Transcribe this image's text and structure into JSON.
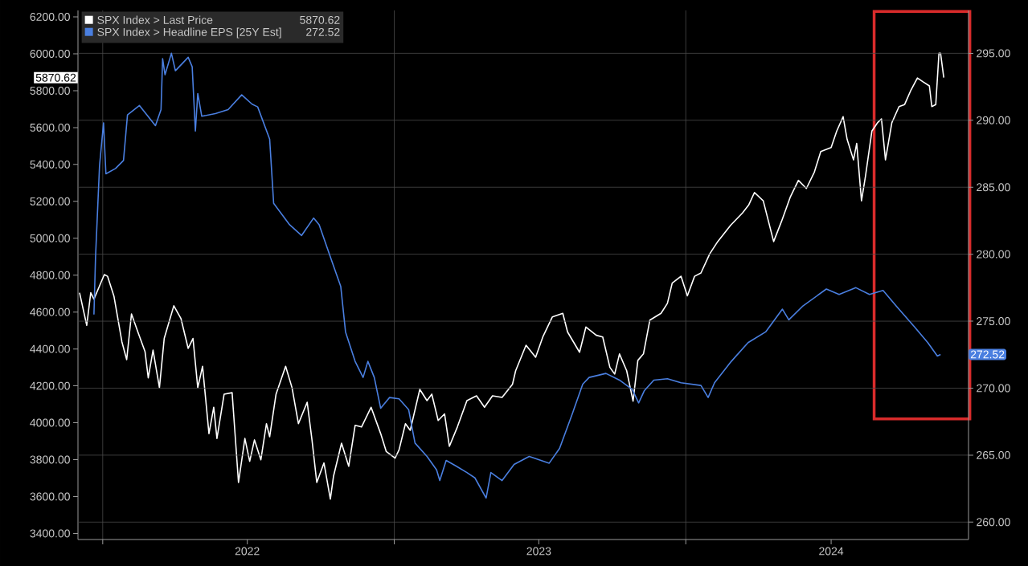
{
  "chart_data": {
    "type": "line",
    "legend": "top left",
    "grid": true,
    "marker": "none",
    "line_style": "solid",
    "xlim": [
      "2021-12-01",
      "2024-12-20"
    ],
    "xticks": [
      {
        "value": "2022-01-01",
        "label": null
      },
      {
        "value": "2022-07-01",
        "label": "2022"
      },
      {
        "value": "2023-01-01",
        "label": null
      },
      {
        "value": "2023-07-01",
        "label": "2023"
      },
      {
        "value": "2024-01-01",
        "label": null
      },
      {
        "value": "2024-07-01",
        "label": "2024"
      }
    ],
    "ylim": [
      3367,
      6235
    ],
    "yticks": [
      {
        "value": 3400,
        "label": "3400.00"
      },
      {
        "value": 3600,
        "label": "3600.00"
      },
      {
        "value": 3800,
        "label": "3800.00"
      },
      {
        "value": 4000,
        "label": "4000.00"
      },
      {
        "value": 4200,
        "label": "4200.00"
      },
      {
        "value": 4400,
        "label": "4400.00"
      },
      {
        "value": 4600,
        "label": "4600.00"
      },
      {
        "value": 4800,
        "label": "4800.00"
      },
      {
        "value": 5000,
        "label": "5000.00"
      },
      {
        "value": 5200,
        "label": "5200.00"
      },
      {
        "value": 5400,
        "label": "5400.00"
      },
      {
        "value": 5600,
        "label": "5600.00"
      },
      {
        "value": 5800,
        "label": "5800.00"
      },
      {
        "value": 6000,
        "label": "6000.00"
      },
      {
        "value": 6200,
        "label": "6200.00"
      }
    ],
    "y2lim": [
      258.7,
      298.2
    ],
    "y2ticks": [
      {
        "value": 260,
        "label": "260.00"
      },
      {
        "value": 265,
        "label": "265.00"
      },
      {
        "value": 270,
        "label": "270.00"
      },
      {
        "value": 275,
        "label": "275.00"
      },
      {
        "value": 280,
        "label": "280.00"
      },
      {
        "value": 285,
        "label": "285.00"
      },
      {
        "value": 290,
        "label": "290.00"
      },
      {
        "value": 295,
        "label": "295.00"
      }
    ],
    "annotations": [
      "5870.62",
      "272.52"
    ],
    "series": [
      {
        "name": "SPX Index > Last Price",
        "color": "#ffffff",
        "x": [
          "2021-12-03",
          "2021-12-12",
          "2021-12-17",
          "2021-12-21",
          "2022-01-03",
          "2022-01-07",
          "2022-01-15",
          "2022-01-25",
          "2022-01-31",
          "2022-02-06",
          "2022-02-14",
          "2022-02-23",
          "2022-02-27",
          "2022-03-05",
          "2022-03-13",
          "2022-03-19",
          "2022-03-31",
          "2022-04-09",
          "2022-04-18",
          "2022-04-24",
          "2022-04-30",
          "2022-05-06",
          "2022-05-14",
          "2022-05-20",
          "2022-05-24",
          "2022-06-02",
          "2022-06-12",
          "2022-06-20",
          "2022-06-28",
          "2022-07-04",
          "2022-07-10",
          "2022-07-18",
          "2022-07-25",
          "2022-07-29",
          "2022-08-06",
          "2022-08-18",
          "2022-08-26",
          "2022-09-03",
          "2022-09-14",
          "2022-09-20",
          "2022-09-26",
          "2022-10-05",
          "2022-10-13",
          "2022-10-17",
          "2022-10-27",
          "2022-11-05",
          "2022-11-13",
          "2022-11-21",
          "2022-12-03",
          "2022-12-15",
          "2022-12-22",
          "2023-01-02",
          "2023-01-07",
          "2023-01-15",
          "2023-01-21",
          "2023-02-02",
          "2023-02-11",
          "2023-02-17",
          "2023-02-25",
          "2023-03-05",
          "2023-03-11",
          "2023-03-21",
          "2023-04-02",
          "2023-04-14",
          "2023-04-24",
          "2023-05-04",
          "2023-05-16",
          "2023-05-29",
          "2023-06-02",
          "2023-06-15",
          "2023-06-27",
          "2023-07-06",
          "2023-07-18",
          "2023-07-31",
          "2023-08-06",
          "2023-08-21",
          "2023-08-29",
          "2023-09-11",
          "2023-09-19",
          "2023-09-28",
          "2023-10-04",
          "2023-10-10",
          "2023-10-19",
          "2023-10-27",
          "2023-11-02",
          "2023-11-09",
          "2023-11-17",
          "2023-12-01",
          "2023-12-09",
          "2023-12-15",
          "2023-12-26",
          "2024-01-03",
          "2024-01-12",
          "2024-01-20",
          "2024-01-31",
          "2024-02-10",
          "2024-02-26",
          "2024-03-12",
          "2024-03-20",
          "2024-03-27",
          "2024-04-07",
          "2024-04-20",
          "2024-04-30",
          "2024-05-11",
          "2024-05-21",
          "2024-05-31",
          "2024-06-10",
          "2024-06-18",
          "2024-07-01",
          "2024-07-08",
          "2024-07-16",
          "2024-07-21",
          "2024-07-29",
          "2024-08-02",
          "2024-08-08",
          "2024-08-13",
          "2024-08-21",
          "2024-08-28",
          "2024-09-02",
          "2024-09-07",
          "2024-09-15",
          "2024-09-24",
          "2024-10-01",
          "2024-10-09",
          "2024-10-17",
          "2024-10-24",
          "2024-11-01",
          "2024-11-04",
          "2024-11-09",
          "2024-11-13",
          "2024-11-15",
          "2024-11-19"
        ],
        "values": [
          4705,
          4528,
          4705,
          4670,
          4803,
          4794,
          4687,
          4439,
          4342,
          4590,
          4492,
          4385,
          4243,
          4394,
          4190,
          4457,
          4634,
          4564,
          4403,
          4457,
          4190,
          4306,
          3941,
          4084,
          3915,
          4155,
          4163,
          3676,
          3915,
          3791,
          3907,
          3799,
          3995,
          3924,
          4155,
          4306,
          4190,
          3995,
          4111,
          3907,
          3676,
          3782,
          3586,
          3711,
          3889,
          3764,
          3986,
          3977,
          4084,
          3941,
          3844,
          3808,
          3853,
          3995,
          3959,
          4181,
          4120,
          4155,
          4012,
          4048,
          3872,
          3977,
          4120,
          4146,
          4084,
          4146,
          4137,
          4208,
          4282,
          4420,
          4355,
          4465,
          4574,
          4593,
          4492,
          4382,
          4519,
          4474,
          4465,
          4300,
          4264,
          4373,
          4282,
          4117,
          4338,
          4373,
          4556,
          4593,
          4647,
          4757,
          4794,
          4688,
          4794,
          4812,
          4916,
          4982,
          5070,
          5137,
          5182,
          5248,
          5203,
          4982,
          5093,
          5225,
          5314,
          5270,
          5359,
          5470,
          5492,
          5581,
          5659,
          5536,
          5425,
          5514,
          5203,
          5337,
          5581,
          5626,
          5647,
          5425,
          5626,
          5714,
          5725,
          5804,
          5869,
          5848,
          5826,
          5714,
          5725,
          6003,
          6003,
          5870.62
        ]
      },
      {
        "name": "SPX Index > Headline EPS [25Y Est]",
        "color": "#4a7fe0",
        "axis": "y2",
        "x": [
          "2021-12-21",
          "2021-12-23",
          "2021-12-28",
          "2022-01-02",
          "2022-01-05",
          "2022-01-17",
          "2022-01-27",
          "2022-02-01",
          "2022-02-16",
          "2022-03-08",
          "2022-03-15",
          "2022-03-17",
          "2022-03-20",
          "2022-03-28",
          "2022-04-02",
          "2022-04-18",
          "2022-04-23",
          "2022-04-27",
          "2022-04-30",
          "2022-05-05",
          "2022-05-22",
          "2022-06-07",
          "2022-06-24",
          "2022-07-07",
          "2022-07-14",
          "2022-07-29",
          "2022-08-03",
          "2022-08-23",
          "2022-09-07",
          "2022-09-22",
          "2022-09-29",
          "2022-10-13",
          "2022-10-26",
          "2022-11-01",
          "2022-11-13",
          "2022-11-23",
          "2022-11-29",
          "2022-12-07",
          "2022-12-15",
          "2022-12-26",
          "2023-01-07",
          "2023-01-19",
          "2023-01-27",
          "2023-02-11",
          "2023-02-23",
          "2023-02-27",
          "2023-03-07",
          "2023-03-19",
          "2023-04-02",
          "2023-04-12",
          "2023-04-26",
          "2023-05-02",
          "2023-05-16",
          "2023-05-31",
          "2023-06-19",
          "2023-07-14",
          "2023-07-27",
          "2023-08-12",
          "2023-08-25",
          "2023-09-02",
          "2023-09-23",
          "2023-10-10",
          "2023-10-26",
          "2023-11-03",
          "2023-11-10",
          "2023-11-22",
          "2023-12-09",
          "2023-12-26",
          "2024-01-20",
          "2024-01-29",
          "2024-02-06",
          "2024-02-27",
          "2024-03-19",
          "2024-04-10",
          "2024-05-01",
          "2024-05-09",
          "2024-05-26",
          "2024-06-25",
          "2024-07-11",
          "2024-08-01",
          "2024-08-18",
          "2024-09-04",
          "2024-09-21",
          "2024-10-13",
          "2024-10-30",
          "2024-11-11",
          "2024-11-15"
        ],
        "values": [
          275.5,
          279.8,
          286.6,
          289.8,
          286.0,
          286.4,
          287.0,
          290.4,
          291.1,
          289.6,
          290.8,
          294.6,
          293.4,
          295.0,
          293.7,
          294.7,
          294.0,
          289.2,
          292.0,
          290.3,
          290.5,
          290.8,
          291.9,
          291.2,
          291.0,
          288.6,
          283.8,
          282.2,
          281.4,
          282.7,
          282.2,
          279.8,
          277.6,
          274.2,
          272.0,
          270.8,
          272.0,
          270.8,
          268.5,
          269.3,
          269.2,
          268.4,
          265.9,
          264.9,
          263.9,
          263.1,
          264.6,
          264.2,
          263.7,
          263.3,
          261.8,
          263.7,
          263.1,
          264.3,
          264.9,
          264.4,
          265.5,
          268.1,
          270.3,
          270.8,
          271.1,
          270.6,
          269.9,
          268.9,
          269.8,
          270.6,
          270.7,
          270.4,
          270.2,
          269.3,
          270.4,
          272.0,
          273.4,
          274.2,
          275.9,
          275.1,
          276.1,
          277.4,
          277.0,
          277.5,
          277.0,
          277.3,
          276.1,
          274.6,
          273.4,
          272.4,
          272.52
        ]
      }
    ]
  }
}
